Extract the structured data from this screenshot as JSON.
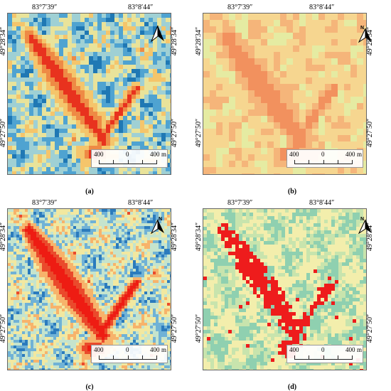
{
  "figure": {
    "panels": [
      {
        "id": "a",
        "label": "(a)",
        "lon_labels": [
          "83°7′39″",
          "83°8′44″"
        ],
        "lat_labels": [
          "49°28′34″",
          "49°27′50″"
        ],
        "scale": {
          "left": "400",
          "mid": "0",
          "right": "400",
          "unit": "m"
        },
        "palette": [
          "#1f78b4",
          "#4fa3d1",
          "#9fd0d4",
          "#e9e39a",
          "#f5c56b",
          "#ee8a45",
          "#e8321e"
        ],
        "north": "N"
      },
      {
        "id": "b",
        "label": "(b)",
        "lon_labels": [
          "83°7′39″",
          "83°8′44″"
        ],
        "lat_labels": [
          "49°28′34″",
          "49°27′50″"
        ],
        "scale": {
          "left": "400",
          "mid": "0",
          "right": "400",
          "unit": "m"
        },
        "palette": [
          "#7cc9a8",
          "#b6e0a2",
          "#e5eba2",
          "#f6d690",
          "#f5b57a",
          "#f2915e"
        ],
        "north": "N"
      },
      {
        "id": "c",
        "label": "(c)",
        "lon_labels": [
          "83°7′39″",
          "83°8′44″"
        ],
        "lat_labels": [
          "49°28′34″",
          "49°27′50″"
        ],
        "scale": {
          "left": "400",
          "mid": "0",
          "right": "400",
          "unit": "m"
        },
        "palette": [
          "#2b7bbd",
          "#70b2d6",
          "#c5e4cd",
          "#f2e8a0",
          "#f7b36b",
          "#ea4a2c",
          "#ee1c13"
        ],
        "north": "N"
      },
      {
        "id": "d",
        "label": "(d)",
        "lon_labels": [
          "83°7′39″",
          "83°8′44″"
        ],
        "lat_labels": [
          "49°28′34″",
          "49°27′50″"
        ],
        "scale": {
          "left": "400",
          "mid": "0",
          "right": "400",
          "unit": "m"
        },
        "palette": [
          "#8fd0b0",
          "#c8e4ad",
          "#f3eeac",
          "#ee1c1c"
        ],
        "north": "N"
      }
    ]
  }
}
